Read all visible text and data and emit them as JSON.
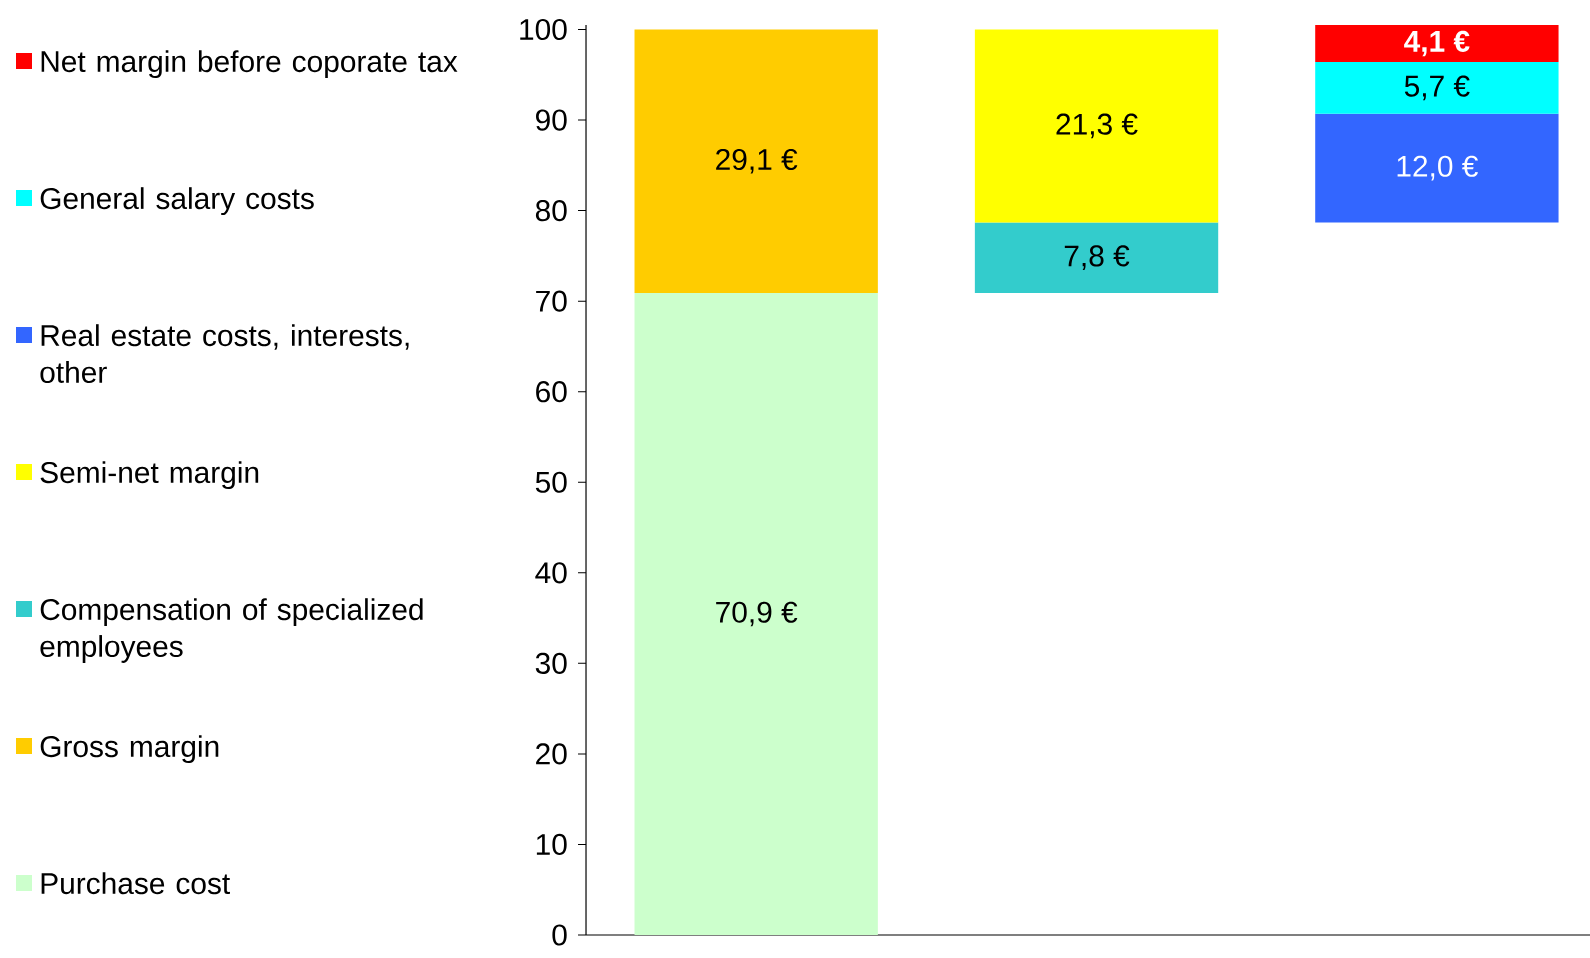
{
  "chart_data": {
    "type": "bar",
    "categories": [
      null,
      null,
      null
    ],
    "series": [
      {
        "name": "Purchase cost",
        "color": "#ccffcc",
        "values": [
          70.9,
          null,
          null
        ],
        "base": [
          0,
          null,
          null
        ],
        "value_labels": [
          "70,9 €",
          null,
          null
        ]
      },
      {
        "name": "Gross margin",
        "color": "#ffcc00",
        "values": [
          29.1,
          null,
          null
        ],
        "base": [
          70.9,
          null,
          null
        ],
        "value_labels": [
          "29,1 €",
          null,
          null
        ]
      },
      {
        "name": "Compensation of specialized employees",
        "color": "#33cccc",
        "values": [
          null,
          7.8,
          null
        ],
        "base": [
          null,
          70.9,
          null
        ],
        "value_labels": [
          null,
          "7,8 €",
          null
        ]
      },
      {
        "name": "Semi-net margin",
        "color": "#ffff00",
        "values": [
          null,
          21.3,
          null
        ],
        "base": [
          null,
          78.7,
          null
        ],
        "value_labels": [
          null,
          "21,3 €",
          null
        ]
      },
      {
        "name": "Real estate costs, interests, other",
        "color": "#3366ff",
        "values": [
          null,
          null,
          12.0
        ],
        "base": [
          null,
          null,
          78.7
        ],
        "value_labels": [
          null,
          null,
          "12,0 €"
        ]
      },
      {
        "name": "General salary costs",
        "color": "#00ffff",
        "values": [
          null,
          null,
          5.7
        ],
        "base": [
          null,
          null,
          90.7
        ],
        "value_labels": [
          null,
          null,
          "5,7 €"
        ]
      },
      {
        "name": "Net margin before coporate tax",
        "color": "#ff0000",
        "values": [
          null,
          null,
          4.1
        ],
        "base": [
          null,
          null,
          96.4
        ],
        "value_labels": [
          null,
          null,
          "**4,1 €**"
        ]
      }
    ],
    "ylim": [
      0,
      100.5
    ],
    "yticks": [
      0,
      10,
      20,
      30,
      40,
      50,
      60,
      70,
      80,
      90,
      100
    ],
    "legend": "left"
  }
}
